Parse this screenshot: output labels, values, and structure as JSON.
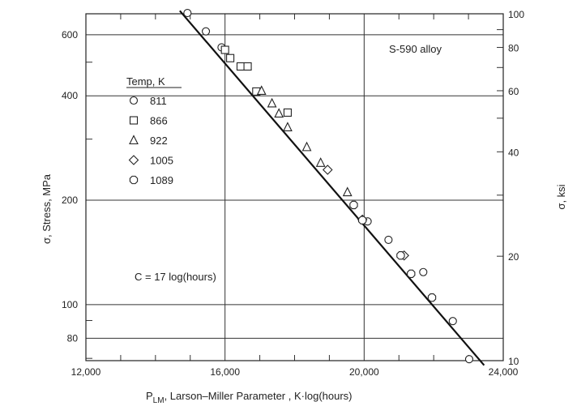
{
  "chart_data": {
    "type": "scatter",
    "title": "",
    "x_axis": {
      "label_main": "P",
      "label_sub": "LM",
      "label_rest": ", Larson–Miller Parameter , K·log(hours)",
      "range": [
        12000,
        24000
      ],
      "ticks": [
        12000,
        16000,
        20000,
        24000
      ],
      "tick_labels": [
        "12,000",
        "16,000",
        "20,000",
        "24,000"
      ]
    },
    "y_axis_left": {
      "label": "σ, Stress, MPa",
      "scale": "log",
      "unit": "MPa",
      "ticks": [
        80,
        100,
        200,
        400,
        600
      ],
      "tick_labels": [
        "80",
        "100",
        "200",
        "400",
        "600"
      ]
    },
    "y_axis_right": {
      "label": "σ, ksi",
      "scale": "log",
      "unit": "ksi",
      "range": [
        10,
        100
      ],
      "ticks": [
        10,
        20,
        40,
        60,
        80,
        100
      ],
      "tick_labels": [
        "10",
        "20",
        "40",
        "60",
        "80",
        "100"
      ]
    },
    "grid": true,
    "legend": {
      "title": "Temp, K",
      "placement": "upper-left",
      "entries": [
        {
          "label": "811",
          "marker": "circle"
        },
        {
          "label": "866",
          "marker": "square"
        },
        {
          "label": "922",
          "marker": "triangle"
        },
        {
          "label": "1005",
          "marker": "diamond"
        },
        {
          "label": "1089",
          "marker": "hexagon"
        }
      ]
    },
    "annotations": {
      "alloy": "S-590 alloy",
      "constant": "C = 17 log(hours)"
    },
    "fit_line": {
      "x": [
        14700,
        23450
      ],
      "ksi": [
        102,
        9.7
      ]
    },
    "series": [
      {
        "name": "811",
        "marker": "circle",
        "points": [
          [
            14920,
            100.5
          ],
          [
            15450,
            89
          ],
          [
            15900,
            80
          ],
          [
            20100,
            25.2
          ],
          [
            20700,
            22.3
          ],
          [
            21700,
            18.0
          ],
          [
            22550,
            13.0
          ],
          [
            23020,
            10.1
          ]
        ]
      },
      {
        "name": "866",
        "marker": "square",
        "points": [
          [
            16000,
            78.7
          ],
          [
            16150,
            74.5
          ],
          [
            16450,
            70.5
          ],
          [
            16650,
            70.5
          ],
          [
            16900,
            59.7
          ],
          [
            17800,
            51.9
          ]
        ]
      },
      {
        "name": "922",
        "marker": "triangle",
        "points": [
          [
            17050,
            60.0
          ],
          [
            17350,
            55.2
          ],
          [
            17550,
            51.6
          ],
          [
            17800,
            47.1
          ],
          [
            18350,
            41.3
          ],
          [
            18750,
            37.2
          ],
          [
            19520,
            30.6
          ]
        ]
      },
      {
        "name": "1005",
        "marker": "diamond",
        "points": [
          [
            18950,
            35.5
          ],
          [
            19950,
            25.5
          ],
          [
            21150,
            20.1
          ]
        ]
      },
      {
        "name": "1089",
        "marker": "hexagon",
        "points": [
          [
            19700,
            28.1
          ],
          [
            19950,
            25.4
          ],
          [
            21050,
            20.1
          ],
          [
            21350,
            17.8
          ],
          [
            21950,
            15.2
          ]
        ]
      }
    ]
  }
}
